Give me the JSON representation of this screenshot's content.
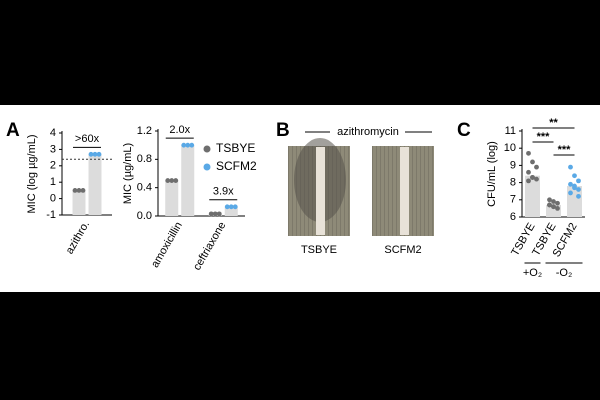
{
  "panel_labels": [
    "A",
    "B",
    "C"
  ],
  "panel_b": {
    "title": "azithromycin",
    "labels": [
      "TSBYE",
      "SCFM2"
    ]
  },
  "chart_data": [
    {
      "type": "bar",
      "y_label": "MIC (log µg/mL)",
      "ylim": [
        -1,
        4
      ],
      "yticks": [
        -1,
        0,
        1,
        2,
        3,
        4
      ],
      "categories": [
        "azithro."
      ],
      "bar_color": "#dcdcdc",
      "series": [
        {
          "name": "TSBYE",
          "color": "#6e6e6e",
          "values": [
            0.5
          ]
        },
        {
          "name": "SCFM2",
          "color": "#5aa9e6",
          "values": [
            2.7
          ]
        }
      ],
      "reference_line": 2.4,
      "annotations": [
        ">60x"
      ]
    },
    {
      "type": "bar",
      "y_label": "MIC (µg/mL)",
      "ylim": [
        0,
        1.2
      ],
      "yticks": [
        {
          "value": 0,
          "label": "0.0"
        },
        0.4,
        0.8,
        1.2
      ],
      "categories": [
        "amoxicillin",
        "ceftriaxone"
      ],
      "bar_color": "#dcdcdc",
      "series": [
        {
          "name": "TSBYE",
          "color": "#6e6e6e",
          "values": [
            0.5,
            0.03
          ]
        },
        {
          "name": "SCFM2",
          "color": "#5aa9e6",
          "values": [
            1.0,
            0.13
          ]
        }
      ],
      "annotations": [
        "2.0x",
        "3.9x"
      ],
      "legend": "upper right"
    },
    {
      "type": "dotbar",
      "y_label": "CFU/mL (log)",
      "ylim": [
        6,
        11
      ],
      "yticks": [
        6,
        7,
        8,
        9,
        10,
        11
      ],
      "categories": [
        "TSBYE",
        "TSBYE",
        "SCFM2"
      ],
      "bar_color": "#dcdcdc",
      "values": [
        8.4,
        6.7,
        7.8
      ],
      "point_colors": [
        "#6e6e6e",
        "#6e6e6e",
        "#5aa9e6"
      ],
      "points": [
        [
          9.7,
          9.2,
          8.9,
          8.6,
          8.3,
          8.2,
          8.1,
          8.3
        ],
        [
          7.0,
          6.9,
          6.8,
          6.7,
          6.6,
          6.5,
          6.7,
          6.6
        ],
        [
          8.9,
          8.4,
          8.1,
          7.9,
          7.7,
          7.6,
          7.4,
          7.8,
          7.2
        ]
      ],
      "annotations": [
        "**",
        "***",
        "***"
      ],
      "groups": [
        "+O₂",
        "-O₂"
      ]
    }
  ]
}
